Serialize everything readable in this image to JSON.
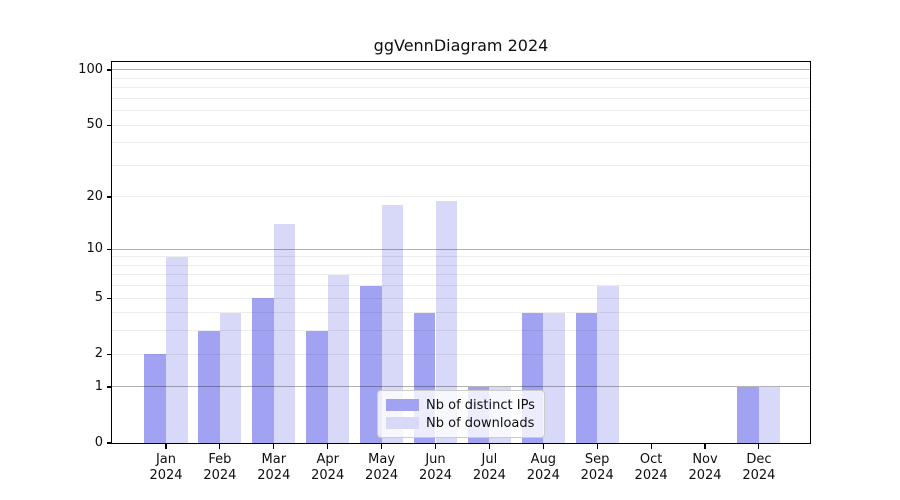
{
  "chart_data": {
    "type": "bar",
    "title": "ggVennDiagram 2024",
    "categories": [
      "Jan 2024",
      "Feb 2024",
      "Mar 2024",
      "Apr 2024",
      "May 2024",
      "Jun 2024",
      "Jul 2024",
      "Aug 2024",
      "Sep 2024",
      "Oct 2024",
      "Nov 2024",
      "Dec 2024"
    ],
    "series": [
      {
        "name": "Nb of distinct IPs",
        "color": "#a2a2f3",
        "values": [
          2,
          3,
          5,
          3,
          6,
          4,
          1,
          4,
          4,
          0,
          0,
          1
        ]
      },
      {
        "name": "Nb of downloads",
        "color": "#d8d8f8",
        "values": [
          9,
          4,
          14,
          7,
          18,
          19,
          1,
          4,
          6,
          0,
          0,
          1
        ]
      }
    ],
    "xlabel": "",
    "ylabel": "",
    "yscale": "log1p",
    "ylim": [
      0,
      110.5
    ],
    "ytick_values": [
      0,
      1,
      2,
      5,
      10,
      20,
      50,
      100
    ],
    "ytick_labels": [
      "0",
      "1",
      "2",
      "5",
      "10",
      "20",
      "50",
      "100"
    ],
    "major_grid_values": [
      1,
      10,
      100
    ],
    "minor_grid_values": [
      2,
      3,
      4,
      5,
      6,
      7,
      8,
      9,
      20,
      30,
      40,
      50,
      60,
      70,
      80,
      90
    ],
    "grid": "horizontal, drawn over bars",
    "legend_position": "lower center",
    "bar_layout": "grouped pairs, side by side, centered on month tick"
  },
  "colors": {
    "background": "#ffffff",
    "ips_bar": "#a2a2f3",
    "downloads_bar": "#d8d8f8",
    "spine": "#000000",
    "legend_border": "#cccccc"
  }
}
